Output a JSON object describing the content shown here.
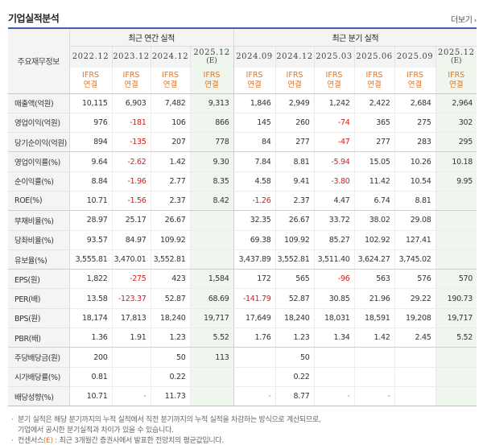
{
  "header": {
    "title": "기업실적분석",
    "more_label": "더보기"
  },
  "table": {
    "label_header": "주요재무정보",
    "groups": {
      "annual": "최근 연간 실적",
      "quarter": "최근 분기 실적"
    },
    "columns": [
      {
        "year": "2022.12",
        "sub": "",
        "ifrs1": "IFRS",
        "ifrs2": "연결",
        "est": false
      },
      {
        "year": "2023.12",
        "sub": "",
        "ifrs1": "IFRS",
        "ifrs2": "연결",
        "est": false
      },
      {
        "year": "2024.12",
        "sub": "",
        "ifrs1": "IFRS",
        "ifrs2": "연결",
        "est": false
      },
      {
        "year": "2025.12",
        "sub": "(E)",
        "ifrs1": "IFRS",
        "ifrs2": "연결",
        "est": true
      },
      {
        "year": "2024.09",
        "sub": "",
        "ifrs1": "IFRS",
        "ifrs2": "연결",
        "est": false
      },
      {
        "year": "2024.12",
        "sub": "",
        "ifrs1": "IFRS",
        "ifrs2": "연결",
        "est": false
      },
      {
        "year": "2025.03",
        "sub": "",
        "ifrs1": "IFRS",
        "ifrs2": "연결",
        "est": false
      },
      {
        "year": "2025.06",
        "sub": "",
        "ifrs1": "IFRS",
        "ifrs2": "연결",
        "est": false
      },
      {
        "year": "2025.09",
        "sub": "",
        "ifrs1": "IFRS",
        "ifrs2": "연결",
        "est": false
      },
      {
        "year": "2025.12",
        "sub": "(E)",
        "ifrs1": "IFRS",
        "ifrs2": "연결",
        "est": true
      }
    ],
    "rows": [
      {
        "label": "매출액(억원)",
        "values": [
          "10,115",
          "6,903",
          "7,482",
          "9,313",
          "1,846",
          "2,949",
          "1,242",
          "2,422",
          "2,684",
          "2,964"
        ]
      },
      {
        "label": "영업이익(억원)",
        "values": [
          "976",
          "-181",
          "106",
          "866",
          "145",
          "260",
          "-74",
          "365",
          "275",
          "302"
        ]
      },
      {
        "label": "당기순이익(억원)",
        "values": [
          "894",
          "-135",
          "207",
          "778",
          "84",
          "277",
          "-47",
          "277",
          "283",
          "295"
        ]
      },
      {
        "label": "영업이익률(%)",
        "values": [
          "9.64",
          "-2.62",
          "1.42",
          "9.30",
          "7.84",
          "8.81",
          "-5.94",
          "15.05",
          "10.26",
          "10.18"
        ]
      },
      {
        "label": "순이익률(%)",
        "values": [
          "8.84",
          "-1.96",
          "2.77",
          "8.35",
          "4.58",
          "9.41",
          "-3.80",
          "11.42",
          "10.54",
          "9.95"
        ]
      },
      {
        "label": "ROE(%)",
        "values": [
          "10.71",
          "-1.56",
          "2.37",
          "8.42",
          "-1.26",
          "2.37",
          "4.47",
          "6.74",
          "8.81",
          ""
        ]
      },
      {
        "label": "부채비율(%)",
        "values": [
          "28.97",
          "25.17",
          "26.67",
          "",
          "32.35",
          "26.67",
          "33.72",
          "38.02",
          "29.08",
          ""
        ]
      },
      {
        "label": "당좌비율(%)",
        "values": [
          "93.57",
          "84.97",
          "109.92",
          "",
          "69.38",
          "109.92",
          "85.27",
          "102.92",
          "127.41",
          ""
        ]
      },
      {
        "label": "유보율(%)",
        "values": [
          "3,555.81",
          "3,470.01",
          "3,552.81",
          "",
          "3,437.89",
          "3,552.81",
          "3,511.40",
          "3,624.27",
          "3,745.02",
          ""
        ]
      },
      {
        "label": "EPS(원)",
        "values": [
          "1,822",
          "-275",
          "423",
          "1,584",
          "172",
          "565",
          "-96",
          "563",
          "576",
          "570"
        ]
      },
      {
        "label": "PER(배)",
        "values": [
          "13.58",
          "-123.37",
          "52.87",
          "68.69",
          "-141.79",
          "52.87",
          "30.85",
          "21.96",
          "29.22",
          "190.73"
        ]
      },
      {
        "label": "BPS(원)",
        "values": [
          "18,174",
          "17,813",
          "18,240",
          "19,717",
          "17,649",
          "18,240",
          "18,031",
          "18,591",
          "19,208",
          "19,717"
        ]
      },
      {
        "label": "PBR(배)",
        "values": [
          "1.36",
          "1.91",
          "1.23",
          "5.52",
          "1.76",
          "1.23",
          "1.34",
          "1.42",
          "2.45",
          "5.52"
        ]
      },
      {
        "label": "주당배당금(원)",
        "values": [
          "200",
          "",
          "50",
          "113",
          "",
          "50",
          "",
          "",
          "",
          ""
        ]
      },
      {
        "label": "시가배당률(%)",
        "values": [
          "0.81",
          "",
          "0.22",
          "",
          "",
          "0.22",
          "",
          "",
          "",
          ""
        ]
      },
      {
        "label": "배당성향(%)",
        "values": [
          "10.71",
          "-",
          "11.73",
          "",
          "-",
          "8.77",
          "-",
          "-",
          "",
          ""
        ]
      }
    ]
  },
  "notes": {
    "line1": "분기 실적은 해당 분기까지의 누적 실적에서 직전 분기까지의 누적 실적을 차감하는 방식으로 계산되므로,",
    "line2": "기업에서 공시한 분기실적과 차이가 있을 수 있습니다.",
    "line3_prefix": "컨센서스",
    "line3_mark": "(E)",
    "line3_rest": ": 최근 3개월간 증권사에서 발표한 전망치의 평균값입니다."
  },
  "colors": {
    "accent_blue": "#3f61a8",
    "ifrs_orange": "#e8731d",
    "negative_red": "#d61b1b",
    "estimate_bg": "#eef6ee"
  }
}
